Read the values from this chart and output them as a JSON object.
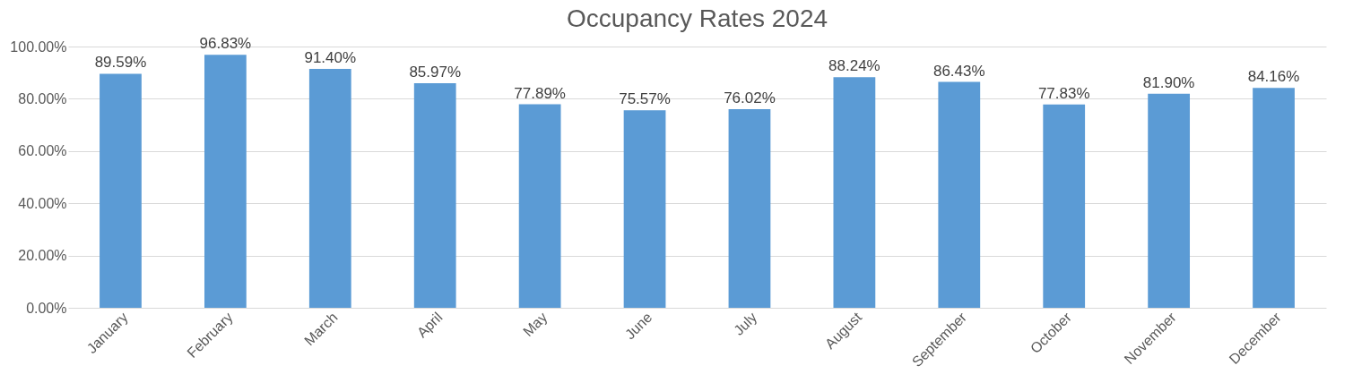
{
  "chart_data": {
    "type": "bar",
    "title": "Occupancy Rates 2024",
    "categories": [
      "January",
      "February",
      "March",
      "April",
      "May",
      "June",
      "July",
      "August",
      "September",
      "October",
      "November",
      "December"
    ],
    "values": [
      89.59,
      96.83,
      91.4,
      85.97,
      77.89,
      75.57,
      76.02,
      88.24,
      86.43,
      77.83,
      81.9,
      84.16
    ],
    "value_labels": [
      "89.59%",
      "96.83%",
      "91.40%",
      "85.97%",
      "77.89%",
      "75.57%",
      "76.02%",
      "88.24%",
      "86.43%",
      "77.83%",
      "81.90%",
      "84.16%"
    ],
    "color": "#5b9bd5",
    "ylim": [
      0,
      100
    ],
    "yticks": [
      {
        "value": 0,
        "label": "0.00%"
      },
      {
        "value": 20,
        "label": "20.00%"
      },
      {
        "value": 40,
        "label": "40.00%"
      },
      {
        "value": 60,
        "label": "60.00%"
      },
      {
        "value": 80,
        "label": "80.00%"
      },
      {
        "value": 100,
        "label": "100.00%"
      }
    ],
    "grid": "y"
  }
}
